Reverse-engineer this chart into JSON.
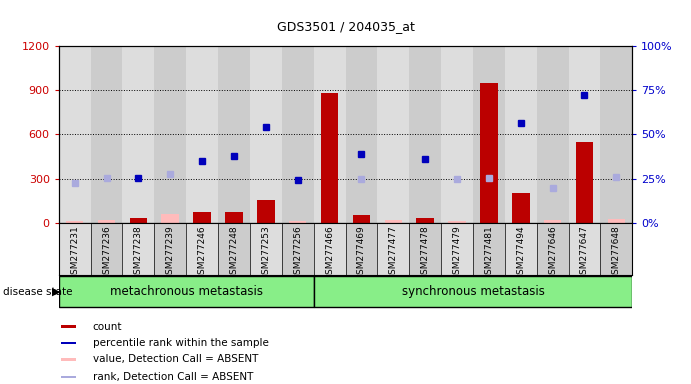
{
  "title": "GDS3501 / 204035_at",
  "samples": [
    "GSM277231",
    "GSM277236",
    "GSM277238",
    "GSM277239",
    "GSM277246",
    "GSM277248",
    "GSM277253",
    "GSM277256",
    "GSM277466",
    "GSM277469",
    "GSM277477",
    "GSM277478",
    "GSM277479",
    "GSM277481",
    "GSM277494",
    "GSM277646",
    "GSM277647",
    "GSM277648"
  ],
  "groups": [
    {
      "label": "metachronous metastasis",
      "start": 0,
      "end": 8
    },
    {
      "label": "synchronous metastasis",
      "start": 8,
      "end": 18
    }
  ],
  "bars_red": [
    null,
    null,
    30,
    null,
    70,
    75,
    155,
    null,
    880,
    55,
    null,
    30,
    null,
    950,
    200,
    null,
    550,
    null
  ],
  "bars_pink": [
    15,
    20,
    null,
    60,
    null,
    null,
    null,
    15,
    null,
    null,
    20,
    null,
    15,
    null,
    null,
    20,
    null,
    25
  ],
  "dots_blue": [
    null,
    null,
    305,
    null,
    420,
    455,
    650,
    290,
    null,
    470,
    null,
    430,
    null,
    null,
    680,
    null,
    870,
    null
  ],
  "dots_lightblue": [
    270,
    305,
    null,
    330,
    null,
    null,
    null,
    null,
    null,
    300,
    null,
    null,
    295,
    305,
    null,
    235,
    null,
    310
  ],
  "ylim_left": [
    0,
    1200
  ],
  "ylim_right": [
    0,
    100
  ],
  "yticks_left": [
    0,
    300,
    600,
    900,
    1200
  ],
  "yticks_right": [
    0,
    25,
    50,
    75,
    100
  ],
  "ylabel_left_color": "#cc0000",
  "ylabel_right_color": "#0000cc",
  "bar_red_color": "#bb0000",
  "bar_pink_color": "#ffbbbb",
  "dot_blue_color": "#0000bb",
  "dot_lightblue_color": "#aaaadd",
  "col_bg_even": "#dddddd",
  "col_bg_odd": "#cccccc",
  "group_fill_color": "#88ee88",
  "group_border_color": "#000000",
  "disease_state_label": "disease state",
  "legend_items": [
    {
      "color": "#bb0000",
      "label": "count",
      "marker": "rect"
    },
    {
      "color": "#0000bb",
      "label": "percentile rank within the sample",
      "marker": "rect"
    },
    {
      "color": "#ffbbbb",
      "label": "value, Detection Call = ABSENT",
      "marker": "rect"
    },
    {
      "color": "#aaaadd",
      "label": "rank, Detection Call = ABSENT",
      "marker": "rect"
    }
  ],
  "background_color": "#ffffff",
  "plot_bg_color": "#ffffff"
}
